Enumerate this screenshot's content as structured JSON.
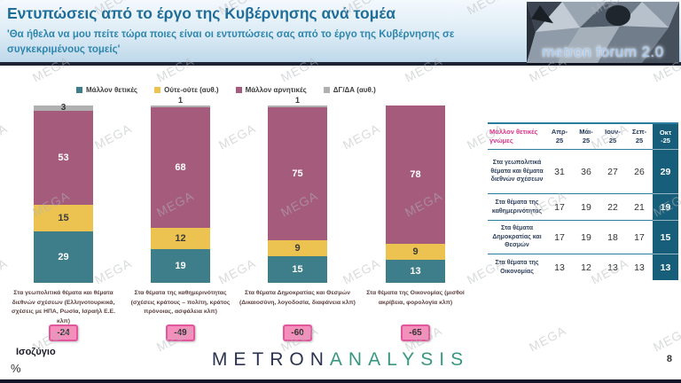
{
  "header": {
    "title": "Εντυπώσεις από το έργο της Κυβέρνησης ανά τομέα",
    "subtitle": "'Θα ήθελα να μου πείτε τώρα ποιες είναι οι εντυπώσεις σας από το έργο της Κυβέρνησης σε συγκεκριμένους τομείς'",
    "logo_text": "metron forum 2.0"
  },
  "watermark": {
    "text": "MEGA"
  },
  "colors": {
    "positive_teal": "#3E7E8A",
    "neutral_yellow": "#ECC351",
    "negative_maroon": "#A55C7C",
    "dk_gray": "#B0B0B0",
    "table_accent_dark_teal": "#175E7A",
    "table_title_pink": "#D63087",
    "badge_pink": "#F48FBC",
    "title_blue": "#1F6E99"
  },
  "legend": [
    {
      "label": "Μάλλον θετικές",
      "color": "#3E7E8A"
    },
    {
      "label": "Ούτε-ούτε (αυθ.)",
      "color": "#ECC351"
    },
    {
      "label": "Μάλλον αρνητικές",
      "color": "#A55C7C"
    },
    {
      "label": "ΔΓ/ΔΑ (αυθ.)",
      "color": "#B0B0B0"
    }
  ],
  "chart_data": {
    "type": "bar",
    "stacked": true,
    "unit": "%",
    "ylim": [
      0,
      100
    ],
    "categories": [
      "Στα γεωπολιτικά θέματα και θέματα διεθνών σχέσεων (Ελληνοτουρκικά, σχέσεις με ΗΠΑ, Ρωσία, Ισραήλ Ε.Ε. κλπ)",
      "Στα θέματα της καθημερινότητας (σχέσεις κράτους – πολίτη, κράτος πρόνοιας, ασφάλεια κλπ)",
      "Στα θέματα Δημοκρατίας και Θεσμών (Δικαιοσύνη, λογοδοσία, διαφάνεια κλπ)",
      "Στα θέματα της Οικονομίας (μισθοί ακρίβεια, φορολογία κλπ)"
    ],
    "series": [
      {
        "name": "Μάλλον θετικές",
        "color": "#3E7E8A",
        "text_color": "#ffffff",
        "values": [
          29,
          19,
          15,
          13
        ]
      },
      {
        "name": "Ούτε-ούτε (αυθ.)",
        "color": "#ECC351",
        "text_color": "#3b3b3b",
        "values": [
          15,
          12,
          9,
          9
        ]
      },
      {
        "name": "Μάλλον αρνητικές",
        "color": "#A55C7C",
        "text_color": "#ffffff",
        "values": [
          53,
          68,
          75,
          78
        ]
      },
      {
        "name": "ΔΓ/ΔΑ (αυθ.)",
        "color": "#B0B0B0",
        "text_color": "#333333",
        "values": [
          3,
          1,
          1,
          0
        ]
      }
    ],
    "balances": [
      -24,
      -49,
      -60,
      -65
    ],
    "balance_label": "Ισοζύγιο"
  },
  "table": {
    "title": "Μάλλον θετικές γνώμες",
    "columns": [
      "Απρ-\n25",
      "Μάι-\n25",
      "Ιουν-\n25",
      "Σεπ-\n25",
      "Οκτ\n-25"
    ],
    "rows": [
      {
        "label": "Στα γεωπολιτικά θέματα και θέματα διεθνών σχέσεων",
        "values": [
          31,
          36,
          27,
          26,
          29
        ]
      },
      {
        "label": "Στα θέματα της καθημερινότητας",
        "values": [
          17,
          19,
          22,
          21,
          19
        ]
      },
      {
        "label": "Στα θέματα Δημοκρατίας και Θεσμών",
        "values": [
          17,
          19,
          18,
          17,
          15
        ]
      },
      {
        "label": "Στα θέματα της Οικονομίας",
        "values": [
          13,
          12,
          13,
          13,
          13
        ]
      }
    ]
  },
  "footer": {
    "unit": "%",
    "logo_metron": "METRON",
    "logo_analysis": "ANALYSIS",
    "page": "8"
  }
}
